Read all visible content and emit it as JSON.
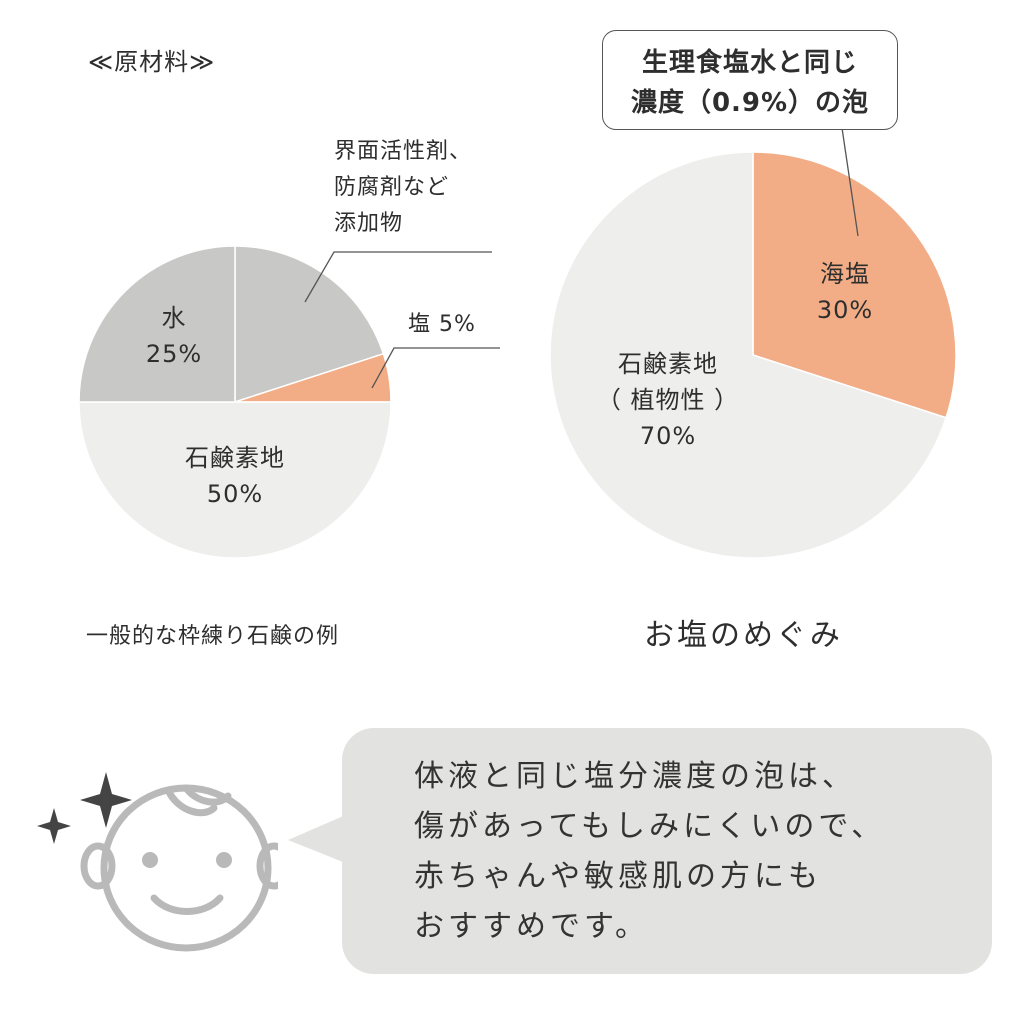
{
  "heading": "≪原材料≫",
  "chart_data": [
    {
      "type": "pie",
      "caption": "一般的な枠練り石鹸の例",
      "slices": [
        {
          "label": "水",
          "value": 25,
          "value_text": "25%",
          "color": "#c8c8c7"
        },
        {
          "label": "界面活性剤、\n防腐剤など\n添加物",
          "value": 20,
          "value_text": "",
          "color": "#c8c8c7"
        },
        {
          "label": "塩",
          "value": 5,
          "value_text": "5%",
          "color": "#f2ad86"
        },
        {
          "label": "石鹸素地",
          "value": 50,
          "value_text": "50%",
          "color": "#eeeeed"
        }
      ]
    },
    {
      "type": "pie",
      "caption": "お塩のめぐみ",
      "slices": [
        {
          "label": "海塩",
          "value": 30,
          "value_text": "30%",
          "color": "#f2ad86"
        },
        {
          "label": "石鹸素地\n（ 植物性 ）",
          "value": 70,
          "value_text": "70%",
          "color": "#eeeeed"
        }
      ],
      "annotation": [
        "生理食塩水と同じ",
        "濃度（0.9%）の泡"
      ]
    }
  ],
  "labels": {
    "left_water": "水\n25%",
    "left_additives": "界面活性剤、\n防腐剤など\n添加物",
    "left_salt": "塩 5%",
    "left_base": "石鹸素地\n50%",
    "right_salt": "海塩\n30%",
    "right_base": "石鹸素地\n（ 植物性 ）\n70%"
  },
  "speech": {
    "text": "体液と同じ塩分濃度の泡は、\n傷があってもしみにくいので、\n赤ちゃんや敏感肌の方にも\nおすすめです。"
  },
  "icons": {
    "face": "baby-face-icon",
    "sparkle": "sparkle-icon"
  },
  "colors": {
    "salt": "#f2ad86",
    "gray": "#c8c8c7",
    "light": "#eeeeed",
    "bubble": "#e2e2e0",
    "line": "#555555"
  }
}
